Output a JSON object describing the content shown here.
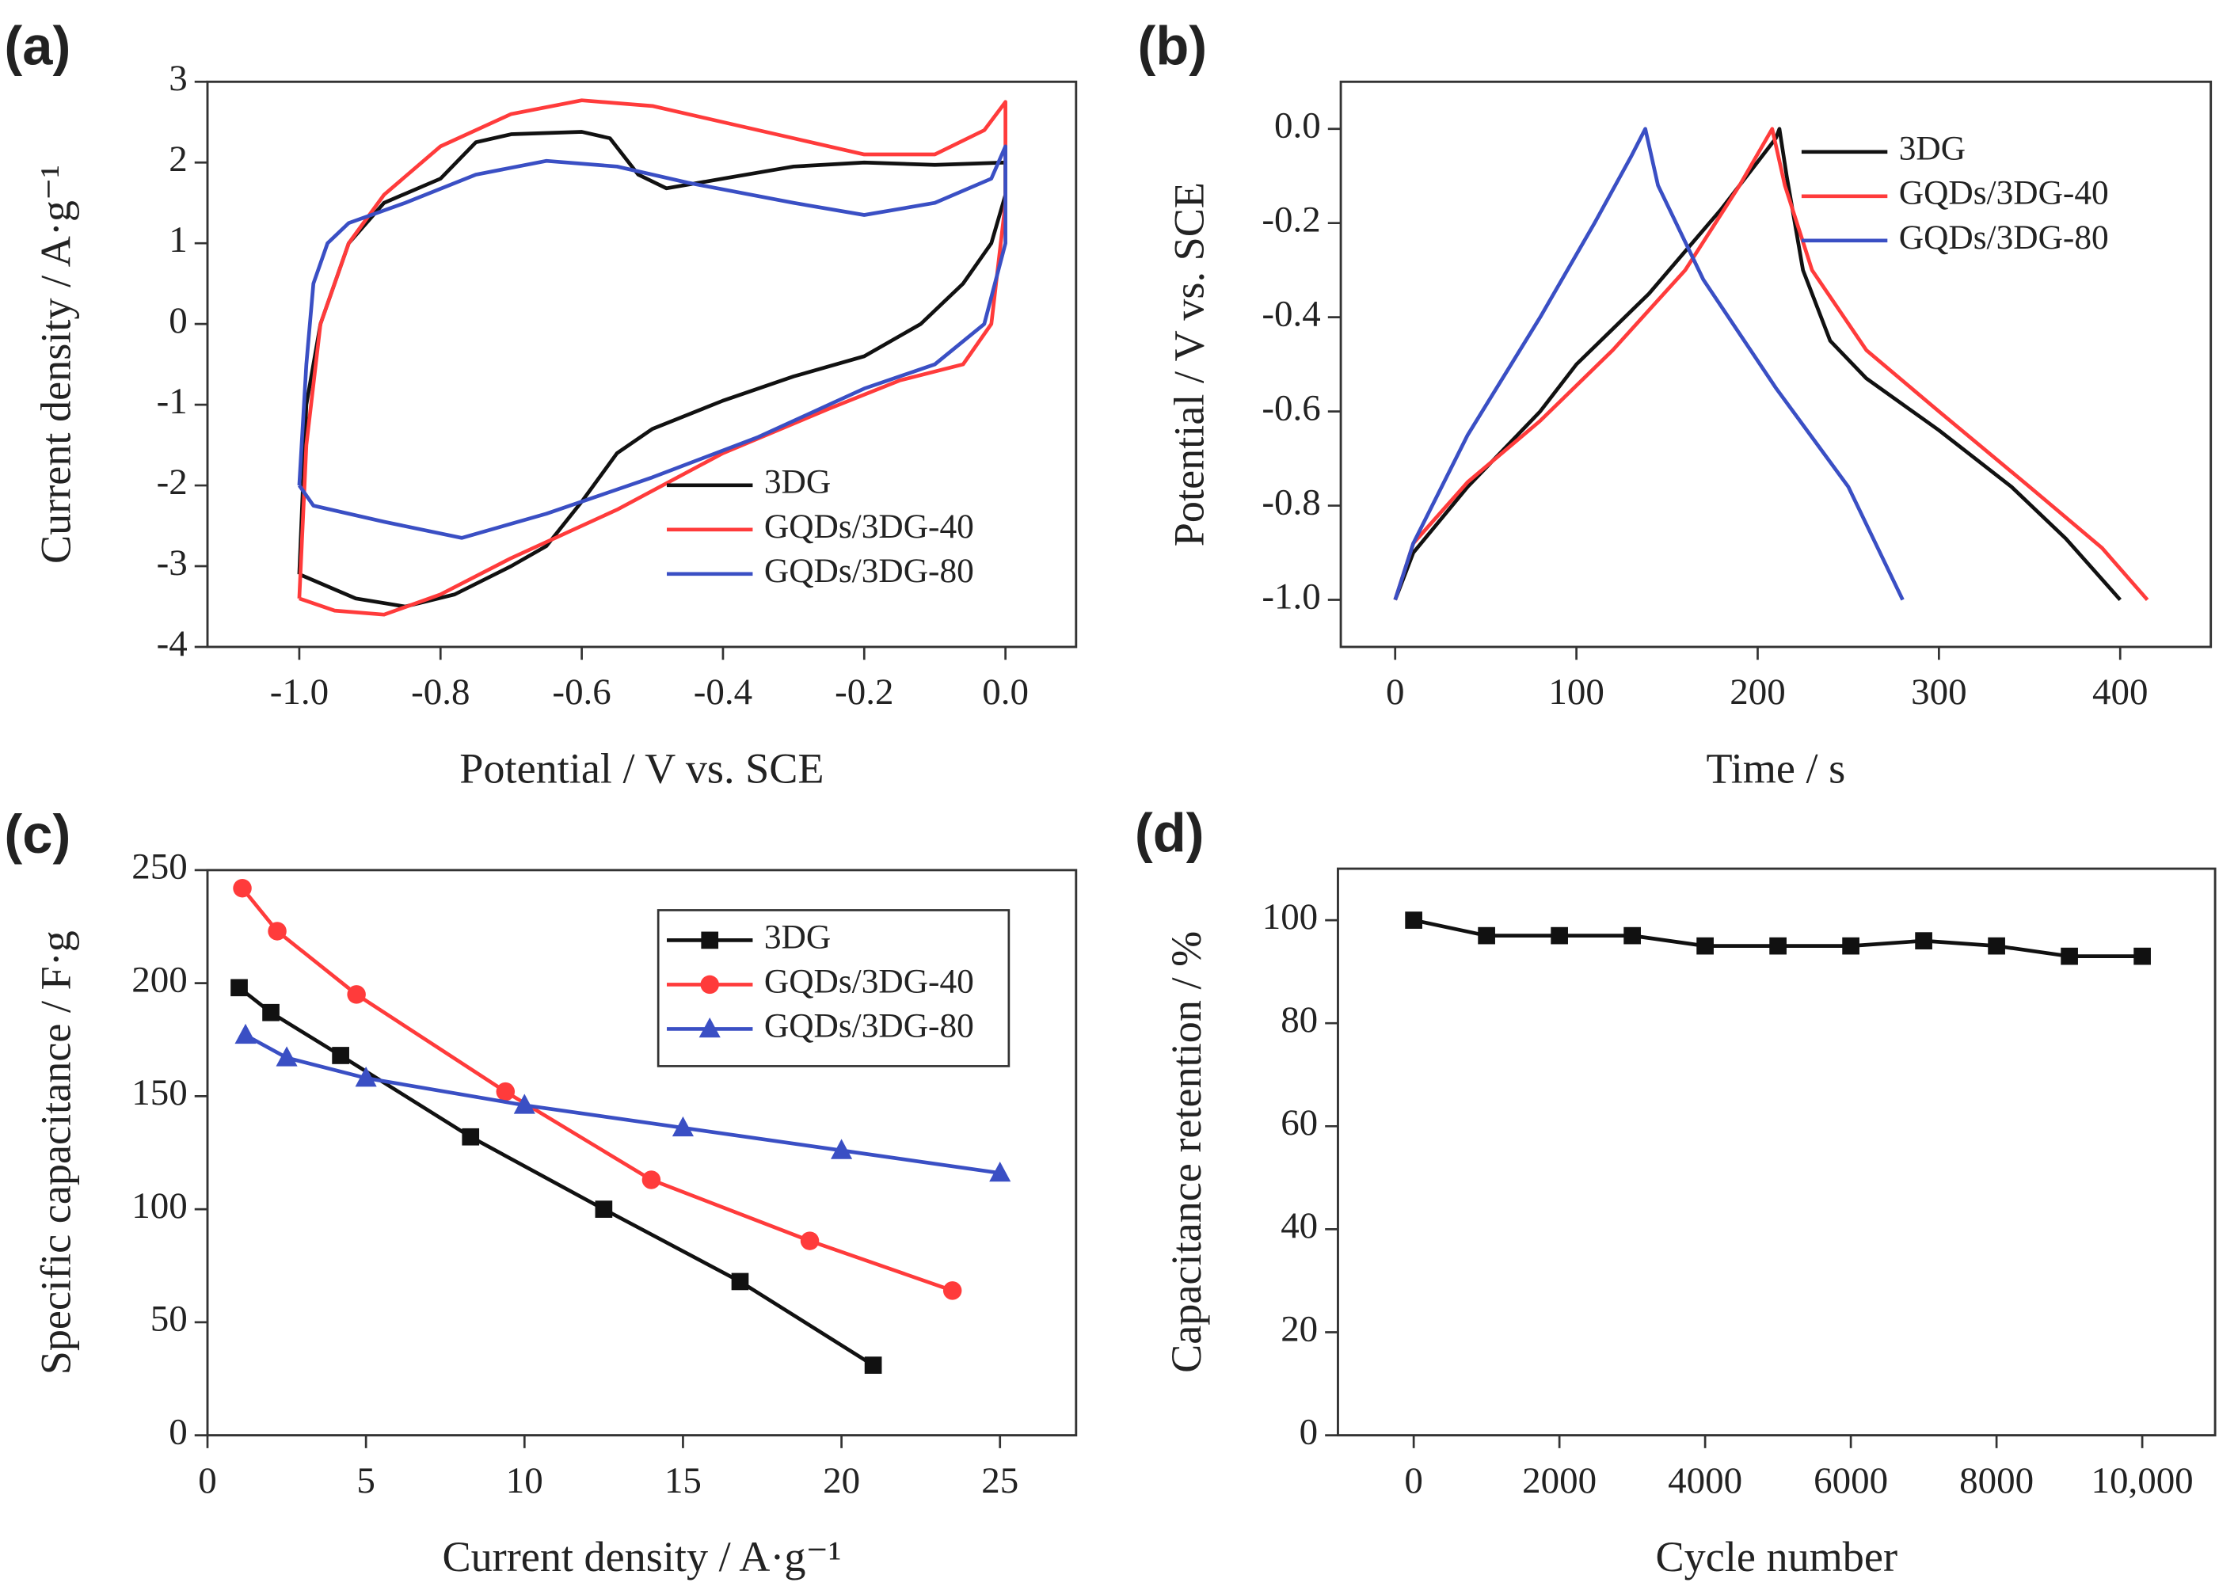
{
  "chart_data": [
    {
      "type": "line",
      "label": "(a)",
      "x_label": "Potential / V vs. SCE",
      "y_label": "Current density / A·g⁻¹",
      "xlim": [
        -1.13,
        0.1
      ],
      "ylim": [
        -4,
        3
      ],
      "xticks": [
        {
          "value": -1,
          "label": "-1.0"
        },
        -0.8,
        -0.6,
        -0.4,
        -0.2,
        {
          "value": 0,
          "label": "0.0"
        }
      ],
      "yticks": [
        -4,
        -3,
        -2,
        -1,
        0,
        1,
        2,
        3
      ],
      "legend": "lower right",
      "legend_frame": false,
      "series": [
        {
          "name": "3DG",
          "color": "#111111",
          "x": [
            -1.0,
            -0.99,
            -0.97,
            -0.93,
            -0.88,
            -0.8,
            -0.75,
            -0.7,
            -0.6,
            -0.56,
            -0.52,
            -0.48,
            -0.4,
            -0.3,
            -0.2,
            -0.1,
            0.0,
            0.0,
            -0.02,
            -0.06,
            -0.12,
            -0.2,
            -0.3,
            -0.4,
            -0.5,
            -0.55,
            -0.6,
            -0.65,
            -0.7,
            -0.78,
            -0.85,
            -0.92,
            -1.0
          ],
          "values": [
            -3.1,
            -1.0,
            0.0,
            1.0,
            1.5,
            1.8,
            2.25,
            2.35,
            2.38,
            2.3,
            1.85,
            1.68,
            1.8,
            1.95,
            2.0,
            1.97,
            2.0,
            1.6,
            1.0,
            0.5,
            0.0,
            -0.4,
            -0.65,
            -0.95,
            -1.3,
            -1.6,
            -2.2,
            -2.75,
            -3.0,
            -3.35,
            -3.5,
            -3.4,
            -3.1
          ]
        },
        {
          "name": "GQDs/3DG-40",
          "color": "#ff3b3b",
          "x": [
            -1.0,
            -0.99,
            -0.97,
            -0.93,
            -0.88,
            -0.8,
            -0.7,
            -0.6,
            -0.5,
            -0.4,
            -0.3,
            -0.2,
            -0.1,
            -0.03,
            0.0,
            0.0,
            -0.02,
            -0.06,
            -0.15,
            -0.25,
            -0.4,
            -0.55,
            -0.7,
            -0.8,
            -0.88,
            -0.95,
            -1.0
          ],
          "values": [
            -3.4,
            -1.5,
            0.0,
            1.0,
            1.6,
            2.2,
            2.6,
            2.77,
            2.7,
            2.5,
            2.3,
            2.1,
            2.1,
            2.4,
            2.75,
            1.5,
            0.0,
            -0.5,
            -0.7,
            -1.05,
            -1.6,
            -2.3,
            -2.9,
            -3.35,
            -3.6,
            -3.55,
            -3.4
          ]
        },
        {
          "name": "GQDs/3DG-80",
          "color": "#3a4fc4",
          "x": [
            -1.0,
            -0.99,
            -0.98,
            -0.96,
            -0.93,
            -0.85,
            -0.75,
            -0.65,
            -0.55,
            -0.45,
            -0.3,
            -0.2,
            -0.1,
            -0.02,
            0.0,
            0.0,
            -0.03,
            -0.1,
            -0.2,
            -0.35,
            -0.5,
            -0.65,
            -0.77,
            -0.88,
            -0.98,
            -1.0
          ],
          "values": [
            -2.0,
            -0.5,
            0.5,
            1.0,
            1.25,
            1.5,
            1.85,
            2.02,
            1.95,
            1.75,
            1.5,
            1.35,
            1.5,
            1.8,
            2.2,
            1.0,
            0.0,
            -0.5,
            -0.8,
            -1.4,
            -1.9,
            -2.35,
            -2.65,
            -2.45,
            -2.25,
            -2.0
          ]
        }
      ]
    },
    {
      "type": "line",
      "label": "(b)",
      "x_label": "Time / s",
      "y_label": "Potential / V vs. SCE",
      "xlim": [
        -30,
        450
      ],
      "ylim": [
        -1.1,
        0.1
      ],
      "xticks": [
        0,
        100,
        200,
        300,
        400
      ],
      "yticks": [
        {
          "value": -1,
          "label": "-1.0"
        },
        -0.8,
        -0.6,
        -0.4,
        -0.2,
        {
          "value": 0,
          "label": "0.0"
        }
      ],
      "legend": "upper right",
      "legend_frame": false,
      "series": [
        {
          "name": "3DG",
          "color": "#111111",
          "x": [
            0,
            10,
            40,
            80,
            100,
            140,
            180,
            210,
            212,
            216,
            225,
            240,
            260,
            300,
            340,
            370,
            400
          ],
          "values": [
            -1.0,
            -0.9,
            -0.76,
            -0.6,
            -0.5,
            -0.35,
            -0.17,
            -0.02,
            0.0,
            -0.1,
            -0.3,
            -0.45,
            -0.53,
            -0.64,
            -0.76,
            -0.87,
            -1.0
          ]
        },
        {
          "name": "GQDs/3DG-40",
          "color": "#ff3b3b",
          "x": [
            0,
            10,
            40,
            80,
            120,
            160,
            190,
            208,
            215,
            230,
            260,
            300,
            350,
            390,
            415
          ],
          "values": [
            -1.0,
            -0.88,
            -0.75,
            -0.62,
            -0.47,
            -0.3,
            -0.12,
            0.0,
            -0.12,
            -0.3,
            -0.47,
            -0.6,
            -0.76,
            -0.89,
            -1.0
          ]
        },
        {
          "name": "GQDs/3DG-80",
          "color": "#3a4fc4",
          "x": [
            0,
            10,
            40,
            80,
            110,
            130,
            138,
            145,
            170,
            210,
            250,
            280
          ],
          "values": [
            -1.0,
            -0.88,
            -0.65,
            -0.4,
            -0.2,
            -0.06,
            0.0,
            -0.12,
            -0.32,
            -0.55,
            -0.76,
            -1.0
          ]
        }
      ]
    },
    {
      "type": "line",
      "label": "(c)",
      "x_label": "Current density / A·g⁻¹",
      "y_label": "Specific capacitance / F·g",
      "xlim": [
        0,
        27.4
      ],
      "ylim": [
        0,
        250
      ],
      "xticks": [
        0,
        5,
        10,
        15,
        20,
        25
      ],
      "yticks": [
        0,
        50,
        100,
        150,
        200,
        250
      ],
      "legend": "upper right",
      "legend_frame": true,
      "series": [
        {
          "name": "3DG",
          "color": "#111111",
          "marker": "square",
          "x": [
            1,
            2,
            4.2,
            8.3,
            12.5,
            16.8,
            21
          ],
          "values": [
            198,
            187,
            168,
            132,
            100,
            68,
            31
          ]
        },
        {
          "name": "GQDs/3DG-40",
          "color": "#ff3b3b",
          "marker": "circle",
          "x": [
            1.1,
            2.2,
            4.7,
            9.4,
            14,
            19,
            23.5
          ],
          "values": [
            242,
            223,
            195,
            152,
            113,
            86,
            64
          ]
        },
        {
          "name": "GQDs/3DG-80",
          "color": "#3a4fc4",
          "marker": "triangle",
          "x": [
            1.2,
            2.5,
            5,
            10,
            15,
            20,
            25
          ],
          "values": [
            177,
            167,
            158,
            146,
            136,
            126,
            116
          ]
        }
      ]
    },
    {
      "type": "line",
      "label": "(d)",
      "x_label": "Cycle number",
      "y_label": "Capacitance retention / %",
      "xlim": [
        -1040,
        11000
      ],
      "ylim": [
        0,
        110
      ],
      "xticks": [
        0,
        2000,
        4000,
        6000,
        8000,
        {
          "value": 10000,
          "label": "10,000"
        }
      ],
      "yticks": [
        0,
        20,
        40,
        60,
        80,
        100
      ],
      "series": [
        {
          "color": "#111111",
          "marker": "square",
          "x": [
            0,
            1000,
            2000,
            3000,
            4000,
            5000,
            6000,
            7000,
            8000,
            9000,
            10000
          ],
          "values": [
            100,
            97,
            97,
            97,
            95,
            95,
            95,
            96,
            95,
            93,
            93
          ]
        }
      ]
    }
  ]
}
